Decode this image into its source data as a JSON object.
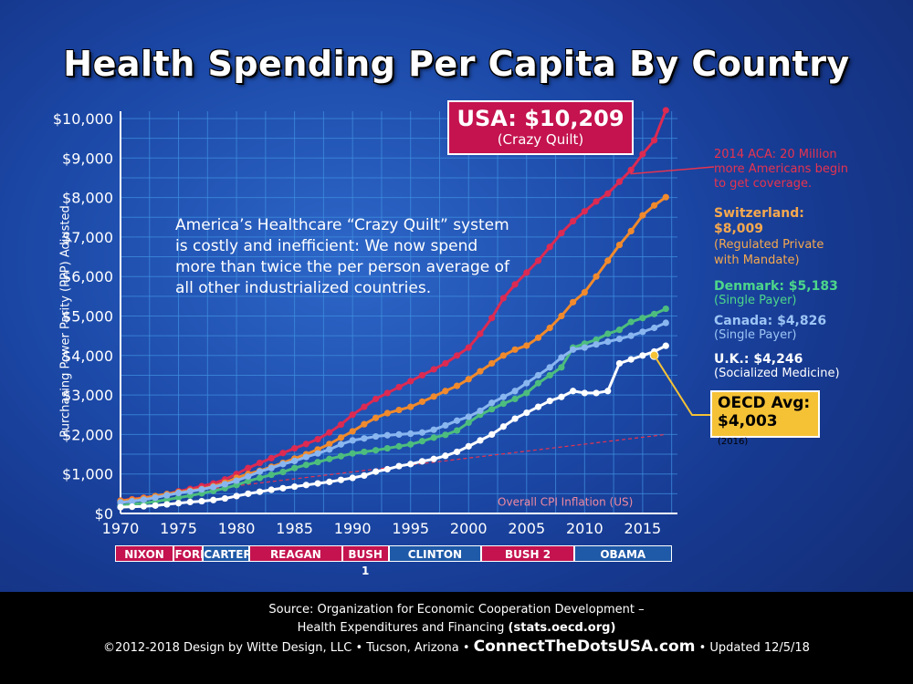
{
  "title": "Health Spending Per Capita By Country",
  "ylabel": "Purchasing Power Parity (PPP) Adjusted",
  "usa_box": {
    "big": "USA: $10,209",
    "small": "(Crazy Quilt)"
  },
  "aca_note": [
    "2014 ACA: 20 Million",
    "more Americans begin",
    "to get coverage."
  ],
  "switzerland": [
    "Switzerland:",
    "$8,009",
    "(Regulated Private",
    "with Mandate)"
  ],
  "denmark": [
    "Denmark: $5,183",
    "(Single Payer)"
  ],
  "canada": [
    "Canada: $4,826",
    "(Single Payer)"
  ],
  "uk": [
    "U.K.: $4,246",
    "(Socialized Medicine)"
  ],
  "oecd": {
    "l1": "OECD Avg:",
    "l2": "$4,003",
    "year": "(2016)"
  },
  "note": "America’s Healthcare “Crazy Quilt” system is costly and inefficient: We now spend more than twice the per person average of all other industrialized countries.",
  "cpi_label": "Overall CPI Inflation (US)",
  "presidents": [
    {
      "name": "NIXON",
      "start": 1969.5,
      "end": 1974.6,
      "color": "#c4134f"
    },
    {
      "name": "FORD",
      "start": 1974.6,
      "end": 1977.1,
      "color": "#c4134f"
    },
    {
      "name": "CARTER",
      "start": 1977.1,
      "end": 1981.1,
      "color": "#1f5aa8"
    },
    {
      "name": "REAGAN",
      "start": 1981.1,
      "end": 1989.1,
      "color": "#c4134f"
    },
    {
      "name": "BUSH 1",
      "start": 1989.1,
      "end": 1993.1,
      "color": "#c4134f"
    },
    {
      "name": "CLINTON",
      "start": 1993.1,
      "end": 2001.1,
      "color": "#1f5aa8"
    },
    {
      "name": "BUSH 2",
      "start": 2001.1,
      "end": 2009.1,
      "color": "#c4134f"
    },
    {
      "name": "OBAMA",
      "start": 2009.1,
      "end": 2017.5,
      "color": "#1f5aa8"
    }
  ],
  "footer": {
    "line1": "Source: Organization for Economic Cooperation Development –",
    "line2a": "Health Expenditures and Financing",
    "line2b": "(stats.oecd.org)",
    "line3a": "©2012-2018 Design by Witte Design, LLC • Tucson, Arizona •",
    "line3site": "ConnectTheDotsUSA.com",
    "line3b": "• Updated 12/5/18"
  },
  "chart_data": {
    "type": "line",
    "title": "Health Spending Per Capita By Country",
    "ylabel": "Purchasing Power Parity (PPP) Adjusted",
    "xlim": [
      1970,
      2018
    ],
    "ylim": [
      0,
      10000
    ],
    "x_ticks": [
      1970,
      1975,
      1980,
      1985,
      1990,
      1995,
      2000,
      2005,
      2010,
      2015
    ],
    "x_tick_labels": [
      "1970",
      "1975",
      "1980",
      "1985",
      "1990",
      "1995",
      "2000",
      "2005",
      "2010",
      "2015"
    ],
    "y_ticks": [
      0,
      1000,
      2000,
      3000,
      4000,
      5000,
      6000,
      7000,
      8000,
      9000,
      10000
    ],
    "y_tick_labels": [
      "$0",
      "$1,000",
      "$2,000",
      "$3,000",
      "$4,000",
      "$5,000",
      "$6,000",
      "$7,000",
      "$8,000",
      "$9,000",
      "$10,000"
    ],
    "grid": true,
    "x": [
      1970,
      1971,
      1972,
      1973,
      1974,
      1975,
      1976,
      1977,
      1978,
      1979,
      1980,
      1981,
      1982,
      1983,
      1984,
      1985,
      1986,
      1987,
      1988,
      1989,
      1990,
      1991,
      1992,
      1993,
      1994,
      1995,
      1996,
      1997,
      1998,
      1999,
      2000,
      2001,
      2002,
      2003,
      2004,
      2005,
      2006,
      2007,
      2008,
      2009,
      2010,
      2011,
      2012,
      2013,
      2014,
      2015,
      2016,
      2017
    ],
    "series": [
      {
        "name": "USA",
        "color": "#dc2a52",
        "values": [
          326,
          360,
          400,
          440,
          490,
          560,
          620,
          690,
          760,
          860,
          1000,
          1150,
          1280,
          1400,
          1530,
          1650,
          1760,
          1880,
          2050,
          2250,
          2500,
          2700,
          2900,
          3050,
          3200,
          3350,
          3500,
          3650,
          3800,
          4000,
          4200,
          4550,
          4950,
          5450,
          5800,
          6100,
          6400,
          6750,
          7100,
          7400,
          7650,
          7900,
          8100,
          8400,
          8700,
          9100,
          9450,
          10209
        ]
      },
      {
        "name": "Switzerland",
        "color": "#f08a2c",
        "values": [
          320,
          350,
          390,
          440,
          490,
          540,
          580,
          620,
          690,
          780,
          900,
          1000,
          1080,
          1180,
          1280,
          1390,
          1500,
          1620,
          1760,
          1920,
          2080,
          2260,
          2420,
          2540,
          2620,
          2700,
          2830,
          2960,
          3100,
          3230,
          3400,
          3600,
          3800,
          4000,
          4150,
          4250,
          4450,
          4700,
          5000,
          5350,
          5600,
          6000,
          6400,
          6800,
          7150,
          7550,
          7800,
          8009
        ]
      },
      {
        "name": "Denmark",
        "color": "#4dbd7e",
        "values": [
          200,
          230,
          260,
          300,
          350,
          400,
          450,
          510,
          570,
          640,
          720,
          820,
          900,
          980,
          1050,
          1150,
          1230,
          1300,
          1380,
          1450,
          1520,
          1560,
          1600,
          1650,
          1700,
          1750,
          1830,
          1920,
          1990,
          2100,
          2300,
          2500,
          2640,
          2780,
          2900,
          3050,
          3300,
          3500,
          3700,
          4200,
          4300,
          4400,
          4550,
          4650,
          4850,
          4950,
          5050,
          5183
        ]
      },
      {
        "name": "Canada",
        "color": "#8ab6f0",
        "values": [
          280,
          310,
          350,
          400,
          460,
          520,
          560,
          610,
          670,
          740,
          830,
          940,
          1060,
          1150,
          1250,
          1330,
          1430,
          1520,
          1620,
          1750,
          1850,
          1900,
          1950,
          1980,
          2000,
          2020,
          2050,
          2120,
          2230,
          2350,
          2450,
          2600,
          2800,
          2950,
          3100,
          3300,
          3500,
          3700,
          3950,
          4150,
          4200,
          4280,
          4350,
          4420,
          4500,
          4600,
          4700,
          4826
        ]
      },
      {
        "name": "U.K.",
        "color": "#ffffff",
        "values": [
          160,
          170,
          180,
          200,
          230,
          260,
          290,
          310,
          340,
          380,
          440,
          500,
          550,
          600,
          640,
          680,
          720,
          760,
          800,
          850,
          900,
          960,
          1060,
          1120,
          1200,
          1250,
          1320,
          1380,
          1460,
          1560,
          1700,
          1850,
          2000,
          2200,
          2400,
          2550,
          2700,
          2850,
          2950,
          3100,
          3050,
          3050,
          3100,
          3800,
          3900,
          4000,
          4100,
          4246
        ]
      }
    ],
    "oecd_avg_2016": 4003,
    "cpi_line": {
      "start": [
        1970,
        350
      ],
      "end": [
        2017,
        2000
      ]
    },
    "annotations": [
      "USA: $10,209",
      "OECD Avg: $4,003 (2016)",
      "Overall CPI Inflation (US)",
      "2014 ACA: 20 Million more Americans begin to get coverage."
    ]
  }
}
